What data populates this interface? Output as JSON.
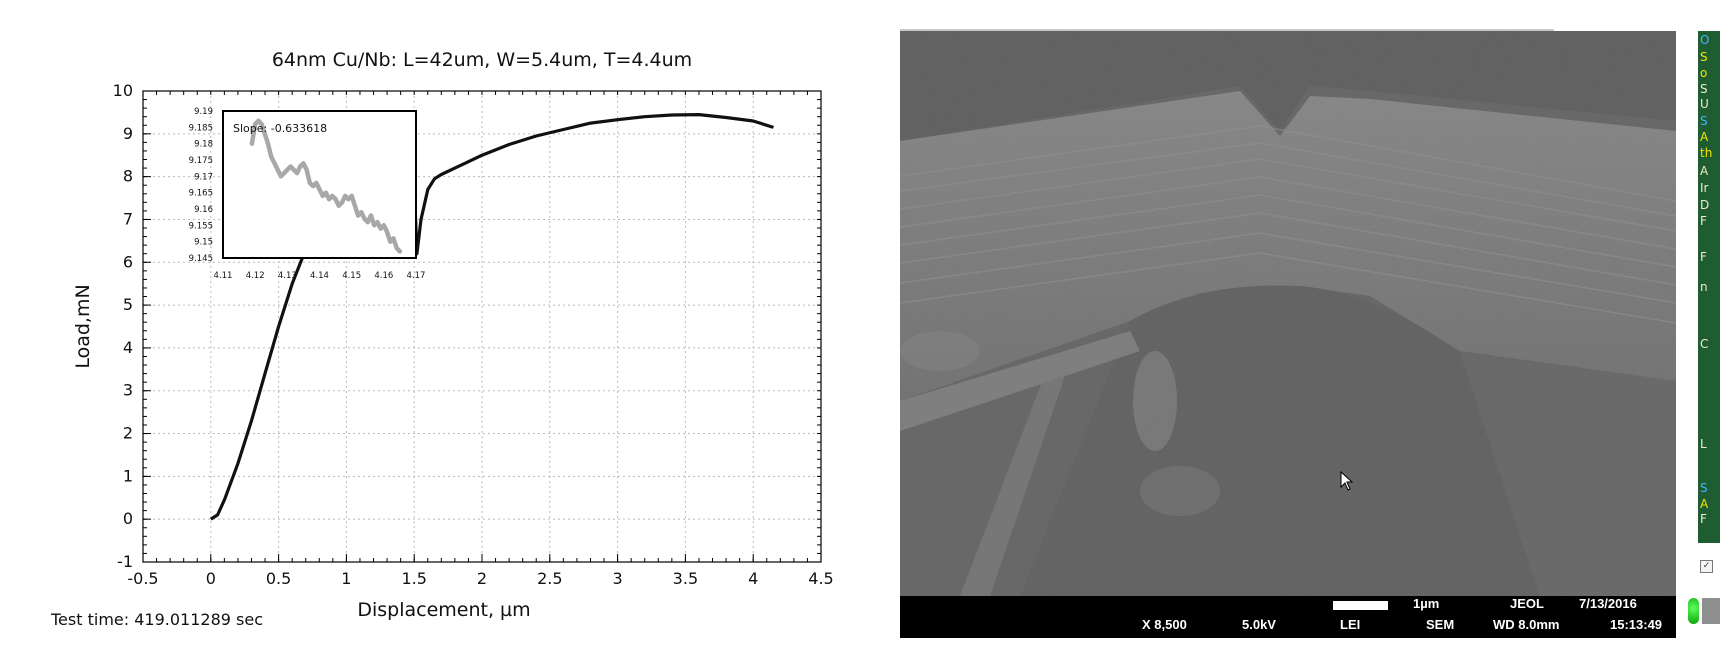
{
  "chart_data": {
    "type": "line",
    "title": "64nm Cu/Nb: L=42um, W=5.4um, T=4.4um",
    "xlabel": "Displacement, µm",
    "ylabel": "Load,mN",
    "xlim": [
      -0.5,
      4.5
    ],
    "ylim": [
      -1,
      10
    ],
    "xticks": [
      "-0.5",
      "0",
      "0.5",
      "1",
      "1.5",
      "2",
      "2.5",
      "3",
      "3.5",
      "4",
      "4.5"
    ],
    "yticks": [
      "-1",
      "0",
      "1",
      "2",
      "3",
      "4",
      "5",
      "6",
      "7",
      "8",
      "9",
      "10"
    ],
    "grid": true,
    "series": [
      {
        "color": "#111111",
        "x": [
          0,
          0.05,
          0.1,
          0.2,
          0.3,
          0.4,
          0.5,
          0.6,
          0.7,
          0.8,
          0.9,
          1.0,
          1.1,
          1.2,
          1.3,
          1.4,
          1.5,
          1.52,
          1.55,
          1.6,
          1.65,
          1.7,
          1.8,
          1.9,
          2.0,
          2.2,
          2.4,
          2.6,
          2.8,
          3.0,
          3.2,
          3.4,
          3.6,
          3.8,
          4.0,
          4.15
        ],
        "y": [
          0,
          0.1,
          0.45,
          1.3,
          2.3,
          3.4,
          4.5,
          5.5,
          6.3,
          6.8,
          7.05,
          7.25,
          7.35,
          7.45,
          7.6,
          7.75,
          7.85,
          6.2,
          7.0,
          7.7,
          7.95,
          8.05,
          8.2,
          8.35,
          8.5,
          8.75,
          8.95,
          9.1,
          9.25,
          9.33,
          9.4,
          9.44,
          9.45,
          9.38,
          9.3,
          9.15
        ]
      }
    ],
    "inset": {
      "annotation": "Slope: -0.633618",
      "xlim": [
        4.11,
        4.17
      ],
      "ylim": [
        9.145,
        9.19
      ],
      "xticks": [
        "4.11",
        "4.12",
        "4.13",
        "4.14",
        "4.15",
        "4.16",
        "4.17"
      ],
      "yticks": [
        "9.19",
        "9.185",
        "9.18",
        "9.175",
        "9.17",
        "9.165",
        "9.16",
        "9.155",
        "9.15",
        "9.145"
      ],
      "series": [
        {
          "color": "#a8a8a8",
          "x": [
            4.119,
            4.12,
            4.121,
            4.122,
            4.123,
            4.124,
            4.125,
            4.126,
            4.127,
            4.128,
            4.129,
            4.13,
            4.131,
            4.132,
            4.133,
            4.134,
            4.135,
            4.136,
            4.137,
            4.138,
            4.139,
            4.14,
            4.141,
            4.142,
            4.143,
            4.144,
            4.145,
            4.146,
            4.147,
            4.148,
            4.149,
            4.15,
            4.151,
            4.152,
            4.153,
            4.154,
            4.155,
            4.156,
            4.157,
            4.158,
            4.159,
            4.16,
            4.161,
            4.162,
            4.163,
            4.164,
            4.165
          ],
          "y": [
            9.18,
            9.186,
            9.187,
            9.186,
            9.183,
            9.18,
            9.176,
            9.174,
            9.172,
            9.17,
            9.171,
            9.172,
            9.173,
            9.172,
            9.171,
            9.173,
            9.174,
            9.172,
            9.168,
            9.167,
            9.168,
            9.166,
            9.164,
            9.165,
            9.163,
            9.164,
            9.163,
            9.161,
            9.162,
            9.164,
            9.163,
            9.164,
            9.161,
            9.158,
            9.159,
            9.157,
            9.156,
            9.158,
            9.155,
            9.156,
            9.154,
            9.155,
            9.153,
            9.15,
            9.151,
            9.148,
            9.147
          ]
        }
      ]
    }
  },
  "test_time": "Test time: 419.011289 sec",
  "sem": {
    "scale_label": "1µm",
    "maker": "JEOL",
    "date": "7/13/2016",
    "magnification": "X 8,500",
    "voltage": "5.0kV",
    "detector": "LEI",
    "mode": "SEM",
    "working_distance": "WD  8.0mm",
    "time": "15:13:49"
  },
  "side_panel": {
    "letters": [
      "O",
      "O",
      "S",
      "o",
      "S",
      "U",
      "S",
      "A",
      "th",
      "A",
      "Ir",
      "D",
      "F",
      "F",
      "n",
      "C",
      "L",
      "S",
      "A",
      "F"
    ],
    "letter_colors": [
      "#f2e600",
      "#3fb7ff",
      "#f2e600",
      "#f2e600",
      "#e9f0c0",
      "#e9f0c0",
      "#3fb7ff",
      "#f2e600",
      "#f2e600",
      "#e9f0c0",
      "#e9f0c0",
      "#e9f0c0",
      "#e9f0c0",
      "#e9f0c0",
      "#e9f0c0",
      "#e9f0c0",
      "#e9f0c0",
      "#3fb7ff",
      "#f2e600",
      "#e9f0c0"
    ],
    "checkbox_mark": "✓"
  },
  "icons": {
    "cursor": "mouse-pointer-icon",
    "status_led": "green-led-icon"
  }
}
